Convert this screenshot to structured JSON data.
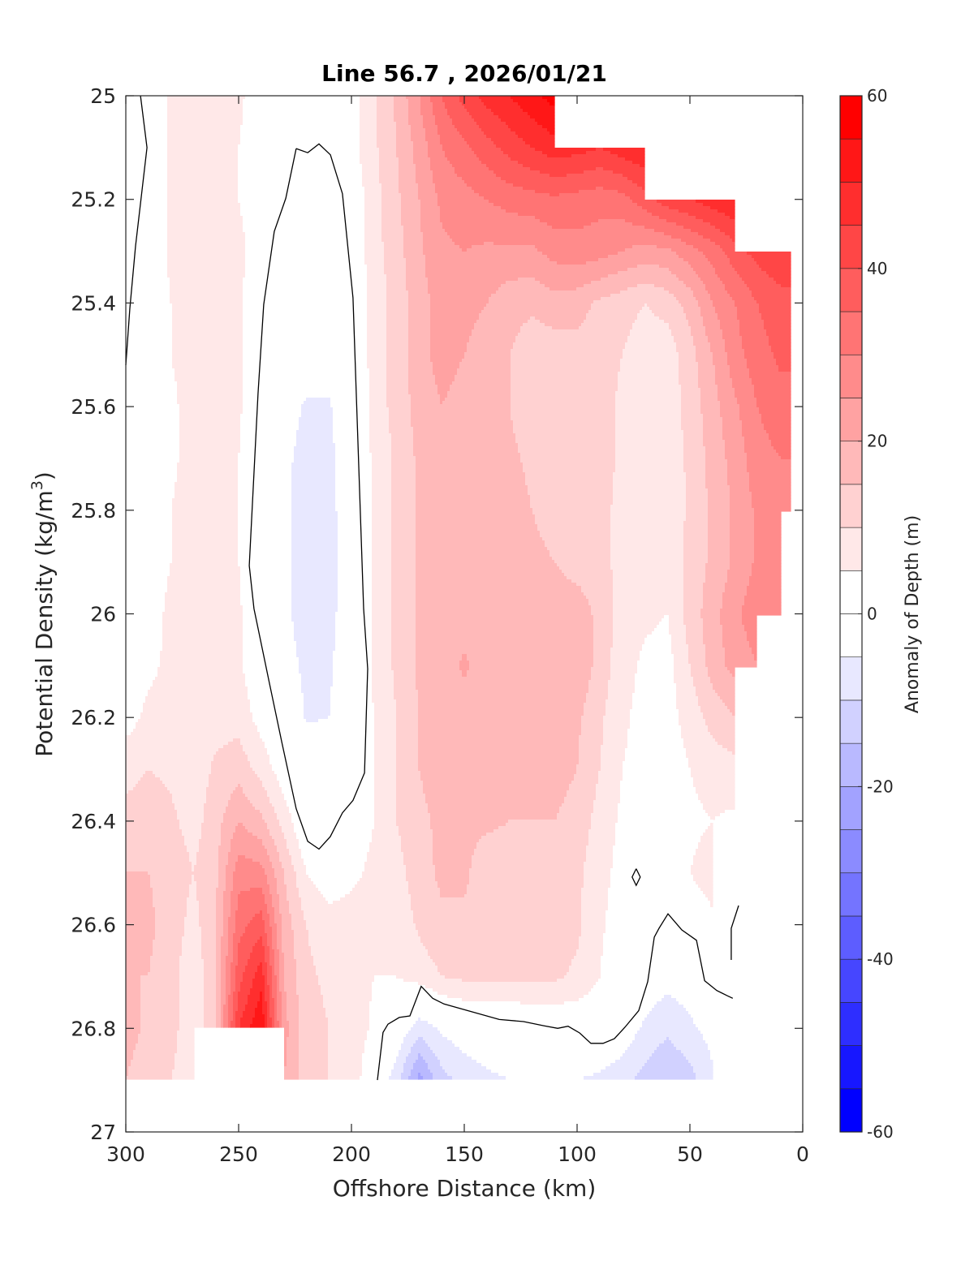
{
  "chart_data": {
    "type": "heatmap",
    "style": "filled-contour",
    "title": "Line 56.7 , 2026/01/21",
    "xlabel": "Offshore Distance (km)",
    "ylabel": {
      "main": "Potential Density (kg/m",
      "sup": "3",
      "end": ")"
    },
    "xlim": [
      300,
      0
    ],
    "ylim": [
      25,
      27
    ],
    "y_reversed": true,
    "grid": false,
    "xticks": [
      300,
      250,
      200,
      150,
      100,
      50,
      0
    ],
    "yticks": [
      25,
      25.2,
      25.4,
      25.6,
      25.8,
      26,
      26.2,
      26.4,
      26.6,
      26.8,
      27
    ],
    "x": [
      300,
      290,
      280,
      270,
      260,
      250,
      240,
      230,
      220,
      210,
      200,
      190,
      180,
      170,
      160,
      150,
      140,
      130,
      120,
      110,
      100,
      90,
      80,
      70,
      60,
      50,
      40,
      30,
      20,
      10,
      5
    ],
    "y": [
      25.0,
      25.1,
      25.2,
      25.3,
      25.4,
      25.5,
      25.6,
      25.7,
      25.8,
      25.9,
      26.0,
      26.1,
      26.2,
      26.3,
      26.4,
      26.5,
      26.6,
      26.7,
      26.8,
      26.9
    ],
    "z": [
      [
        -1,
        1,
        6,
        7,
        7,
        6,
        2,
        1,
        1,
        1,
        3,
        9,
        16,
        25,
        35,
        42,
        47,
        50,
        54,
        57,
        null,
        null,
        null,
        null,
        null,
        null,
        null,
        null,
        null,
        null,
        null
      ],
      [
        -1,
        0.5,
        6,
        7,
        7,
        5,
        2,
        1,
        -0.5,
        -0.5,
        3,
        9,
        15,
        22,
        30,
        34,
        38,
        42,
        45,
        48,
        47,
        45,
        48,
        50,
        null,
        null,
        null,
        null,
        null,
        null,
        null
      ],
      [
        -1,
        0.5,
        6,
        7,
        6,
        5,
        3,
        0.5,
        -1,
        -1,
        1,
        8,
        14,
        20,
        26,
        28,
        30,
        32,
        33,
        34,
        33,
        32,
        33,
        38,
        43,
        45,
        48,
        50,
        null,
        null,
        null
      ],
      [
        -1,
        1,
        6,
        7,
        6,
        6,
        3,
        -1,
        -1.5,
        -1.5,
        0.5,
        8,
        13,
        19,
        24,
        25,
        24,
        24,
        24,
        27,
        28,
        27,
        25,
        23,
        24,
        28,
        32,
        38,
        42,
        44,
        45
      ],
      [
        -0.5,
        1,
        5,
        7,
        6,
        6,
        0.5,
        -1.5,
        -2,
        -2,
        -0.2,
        7,
        12,
        18,
        22,
        22,
        20,
        17,
        16,
        18,
        17,
        14,
        12,
        10,
        12,
        17,
        25,
        30,
        35,
        38,
        38
      ],
      [
        0.3,
        2,
        5,
        7,
        6,
        6,
        -0.5,
        -2,
        -3,
        -3,
        -0.5,
        7,
        12,
        18,
        22,
        20,
        17,
        15,
        12,
        12,
        13,
        12,
        10,
        7,
        7,
        13,
        20,
        28,
        33,
        36,
        36
      ],
      [
        1,
        2,
        4,
        7,
        6,
        6,
        -1,
        -3,
        -5.5,
        -5.5,
        -1,
        7,
        12,
        17,
        20,
        18,
        16,
        15,
        12,
        11,
        13,
        12,
        9,
        7,
        7,
        12,
        18,
        24,
        30,
        33,
        33
      ],
      [
        2,
        3,
        4,
        7,
        6,
        5,
        -1,
        -4,
        -6.5,
        -6.5,
        -1,
        6,
        11,
        16,
        18,
        18,
        17,
        16,
        14,
        11,
        12,
        12,
        9,
        7,
        7,
        11,
        17,
        22,
        28,
        30,
        30
      ],
      [
        2,
        3,
        5,
        7,
        6,
        5,
        -1,
        -4,
        -7,
        -7,
        -1,
        6,
        11,
        16,
        17,
        17,
        17,
        17,
        15,
        12,
        11,
        11,
        9,
        6,
        6,
        11,
        16,
        21,
        26,
        30,
        28
      ],
      [
        2,
        3,
        5,
        7,
        6,
        5,
        -1,
        -4,
        -7,
        -7.5,
        -1,
        6,
        11,
        16,
        17,
        17,
        17,
        17,
        17,
        15,
        12,
        11,
        9,
        6,
        6,
        12,
        16,
        21,
        26,
        29,
        null
      ],
      [
        2,
        3,
        6,
        7,
        6,
        6,
        -0.5,
        -4,
        -7,
        -7,
        -1,
        6,
        11,
        16,
        17,
        17,
        18,
        17,
        17,
        19,
        19,
        13,
        8,
        6,
        5,
        12,
        18,
        24,
        28,
        28,
        null
      ],
      [
        3,
        4,
        6,
        7,
        7,
        6,
        0.5,
        -3,
        -6,
        -6,
        -0.5,
        6,
        11,
        16,
        17,
        21,
        17,
        17,
        17,
        19,
        19,
        13,
        7,
        4,
        3,
        10,
        17,
        22,
        25,
        null,
        null
      ],
      [
        3,
        6,
        7,
        7,
        8,
        8,
        3,
        -0.5,
        -5.5,
        -5,
        -0.5,
        5,
        10,
        15,
        17,
        17,
        17,
        17,
        17,
        17,
        16,
        11,
        6,
        3,
        3,
        7,
        12,
        15,
        null,
        null,
        null
      ],
      [
        8,
        10,
        9,
        7,
        11,
        13,
        8,
        2,
        -1,
        -2,
        0.5,
        5,
        10,
        15,
        17,
        17,
        17,
        17,
        17,
        17,
        15,
        10,
        5,
        3,
        2,
        5,
        7,
        8,
        null,
        null,
        null
      ],
      [
        12,
        13,
        11,
        8,
        13,
        20,
        16,
        8,
        -0.5,
        -0.5,
        2,
        5,
        10,
        14,
        16,
        16,
        16,
        15,
        15,
        15,
        13,
        8,
        4,
        2,
        1,
        4,
        5,
        4,
        null,
        null,
        null
      ],
      [
        15,
        15,
        13,
        10,
        14,
        28,
        27,
        15,
        5,
        2,
        4,
        6,
        8,
        13,
        16,
        16,
        12,
        12,
        12,
        12,
        11,
        7,
        3,
        2,
        1,
        5,
        7,
        null,
        null,
        null,
        null
      ],
      [
        15,
        16,
        13,
        8,
        15,
        33,
        38,
        18,
        10,
        7,
        7,
        8,
        6,
        11,
        14,
        14,
        12,
        12,
        12,
        12,
        11,
        6,
        2,
        1,
        1,
        2,
        4,
        null,
        null,
        null,
        null
      ],
      [
        15,
        15,
        12,
        6,
        15,
        38,
        48,
        20,
        11,
        9,
        7,
        5,
        5,
        7,
        10,
        11,
        11,
        11,
        11,
        11,
        9,
        5,
        1,
        -1,
        -3,
        -2,
        -1,
        null,
        null,
        null,
        null
      ],
      [
        17,
        14,
        12,
        6,
        15,
        45,
        55,
        22,
        12,
        10,
        8,
        4,
        -0.5,
        -8,
        -4,
        -2,
        -1.5,
        -1,
        -0.5,
        -0.3,
        0.5,
        0.3,
        -1.5,
        -6,
        -9,
        -6,
        -3,
        null,
        null,
        null,
        null
      ],
      [
        15,
        12,
        10,
        6,
        null,
        null,
        null,
        20,
        12,
        10,
        8,
        0.5,
        -8,
        -22,
        -12,
        -8,
        -6,
        -5,
        -5,
        -4,
        -5,
        -6,
        -8,
        -12,
        -15,
        -12,
        -6,
        null,
        null,
        null,
        null
      ]
    ],
    "clim": [
      -60,
      60
    ],
    "level_step": 5,
    "colormap": {
      "negative_end": "#0000ff",
      "center": "#ffffff",
      "positive_end": "#ff0000"
    },
    "contour_line_color": "#000000",
    "contour_lines": [
      {
        "level": 0,
        "points": [
          [
            293.5,
            25.0
          ],
          [
            290.6,
            25.1
          ],
          [
            295.7,
            25.29
          ],
          [
            298.2,
            25.41
          ],
          [
            300,
            25.52
          ]
        ]
      },
      {
        "level": 0,
        "points": [
          [
            224.5,
            25.102
          ],
          [
            219.4,
            25.11
          ],
          [
            214.4,
            25.093
          ],
          [
            209.3,
            25.114
          ],
          [
            204.0,
            25.189
          ],
          [
            199.3,
            25.39
          ],
          [
            194.6,
            25.99
          ],
          [
            192.8,
            26.106
          ],
          [
            194.2,
            26.307
          ],
          [
            199.3,
            26.36
          ],
          [
            204.0,
            26.384
          ],
          [
            209.4,
            26.43
          ],
          [
            214.4,
            26.454
          ],
          [
            219.4,
            26.439
          ],
          [
            224.5,
            26.376
          ],
          [
            230.9,
            26.247
          ],
          [
            236.3,
            26.135
          ],
          [
            243.2,
            25.99
          ],
          [
            245.3,
            25.907
          ],
          [
            241.4,
            25.575
          ],
          [
            238.9,
            25.403
          ],
          [
            234.2,
            25.262
          ],
          [
            229.1,
            25.198
          ],
          [
            224.5,
            25.102
          ]
        ]
      },
      {
        "level": 0,
        "points": [
          [
            188.5,
            26.9
          ],
          [
            186.0,
            26.808
          ],
          [
            183.8,
            26.792
          ],
          [
            178.8,
            26.779
          ],
          [
            174.1,
            26.776
          ],
          [
            169.1,
            26.719
          ],
          [
            164.0,
            26.742
          ],
          [
            159.0,
            26.753
          ],
          [
            150.7,
            26.763
          ],
          [
            134.5,
            26.783
          ],
          [
            123.7,
            26.787
          ],
          [
            114.8,
            26.795
          ],
          [
            108.6,
            26.8
          ],
          [
            104.0,
            26.796
          ],
          [
            98.9,
            26.809
          ],
          [
            93.9,
            26.829
          ],
          [
            88.5,
            26.829
          ],
          [
            83.5,
            26.82
          ],
          [
            78.8,
            26.798
          ],
          [
            72.7,
            26.766
          ],
          [
            68.7,
            26.71
          ],
          [
            65.8,
            26.624
          ],
          [
            63.7,
            26.607
          ],
          [
            59.7,
            26.579
          ],
          [
            53.6,
            26.61
          ],
          [
            47.1,
            26.63
          ],
          [
            43.5,
            26.708
          ],
          [
            38.1,
            26.727
          ],
          [
            33.5,
            26.737
          ],
          [
            31.0,
            26.742
          ]
        ]
      },
      {
        "level": 0,
        "points": [
          [
            73.8,
            26.492
          ],
          [
            72.0,
            26.508
          ],
          [
            73.8,
            26.524
          ],
          [
            75.6,
            26.508
          ],
          [
            73.8,
            26.492
          ]
        ]
      },
      {
        "level": 0,
        "points": [
          [
            31.7,
            26.668
          ],
          [
            31.7,
            26.607
          ],
          [
            28.4,
            26.563
          ]
        ]
      }
    ],
    "colorbar": {
      "label": "Anomaly of Depth (m)",
      "ticks": [
        60,
        40,
        20,
        0,
        -20,
        -40,
        -60
      ],
      "placement": "right"
    }
  }
}
